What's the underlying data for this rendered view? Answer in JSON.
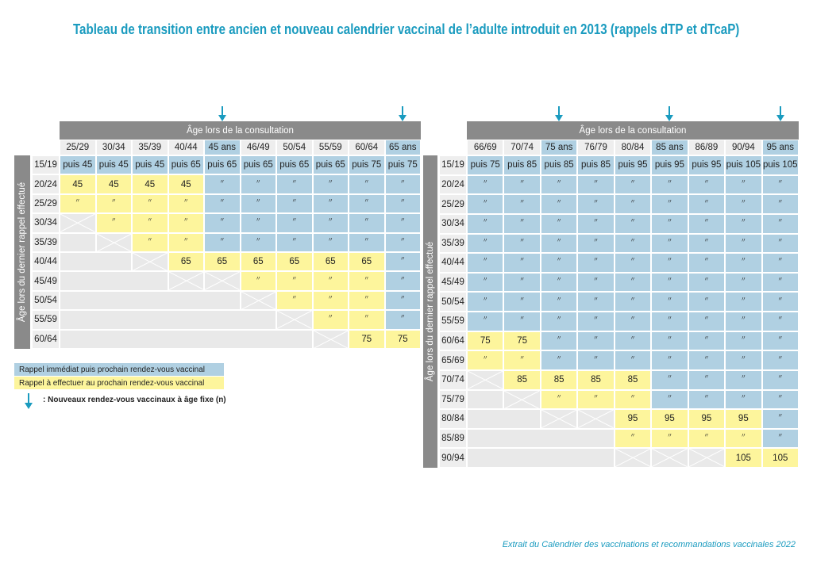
{
  "title": "Tableau de transition entre ancien et nouveau calendrier vaccinal de l’adulte introduit en 2013 (rappels dTP et dTcaP)",
  "colors": {
    "blue": "#b0d0e2",
    "yellow": "#fdf59c",
    "gray": "#e9e9e9",
    "bar": "#8a8a8a",
    "accent": "#1a9bbf"
  },
  "tables": [
    {
      "header": "Âge lors de la consultation",
      "side_label": "Âge lors du dernier rappel effectué",
      "columns": [
        {
          "label": "25/29",
          "fixed": false
        },
        {
          "label": "30/34",
          "fixed": false
        },
        {
          "label": "35/39",
          "fixed": false
        },
        {
          "label": "40/44",
          "fixed": false
        },
        {
          "label": "45 ans",
          "fixed": true
        },
        {
          "label": "46/49",
          "fixed": false
        },
        {
          "label": "50/54",
          "fixed": false
        },
        {
          "label": "55/59",
          "fixed": false
        },
        {
          "label": "60/64",
          "fixed": false
        },
        {
          "label": "65 ans",
          "fixed": true
        }
      ],
      "rows": [
        {
          "label": "15/19",
          "cells": [
            "b:puis 45",
            "b:puis 45",
            "b:puis 45",
            "b:puis 65",
            "b:puis 65",
            "b:puis 65",
            "b:puis 65",
            "b:puis 65",
            "b:puis 75",
            "b:puis 75"
          ]
        },
        {
          "label": "20/24",
          "cells": [
            "y:45",
            "y:45",
            "y:45",
            "y:45",
            "b:〃",
            "b:〃",
            "b:〃",
            "b:〃",
            "b:〃",
            "b:〃"
          ]
        },
        {
          "label": "25/29",
          "cells": [
            "y:〃",
            "y:〃",
            "y:〃",
            "y:〃",
            "b:〃",
            "b:〃",
            "b:〃",
            "b:〃",
            "b:〃",
            "b:〃"
          ]
        },
        {
          "label": "30/34",
          "cells": [
            "x",
            "y:〃",
            "y:〃",
            "y:〃",
            "b:〃",
            "b:〃",
            "b:〃",
            "b:〃",
            "b:〃",
            "b:〃"
          ]
        },
        {
          "label": "35/39",
          "cells": [
            "g",
            "x",
            "y:〃",
            "y:〃",
            "b:〃",
            "b:〃",
            "b:〃",
            "b:〃",
            "b:〃",
            "b:〃"
          ]
        },
        {
          "label": "40/44",
          "cells": [
            "g",
            "g",
            "x",
            "y:65",
            "y:65",
            "y:65",
            "y:65",
            "y:65",
            "y:65",
            "b:〃"
          ]
        },
        {
          "label": "45/49",
          "cells": [
            "g",
            "g",
            "g",
            "x",
            "x",
            "y:〃",
            "y:〃",
            "y:〃",
            "y:〃",
            "b:〃"
          ]
        },
        {
          "label": "50/54",
          "cells": [
            "g",
            "g",
            "g",
            "g",
            "g",
            "x",
            "y:〃",
            "y:〃",
            "y:〃",
            "b:〃"
          ]
        },
        {
          "label": "55/59",
          "cells": [
            "g",
            "g",
            "g",
            "g",
            "g",
            "g",
            "x",
            "y:〃",
            "y:〃",
            "b:〃"
          ]
        },
        {
          "label": "60/64",
          "cells": [
            "g",
            "g",
            "g",
            "g",
            "g",
            "g",
            "g",
            "x",
            "y:75",
            "y:75"
          ]
        }
      ]
    },
    {
      "header": "Âge lors de la consultation",
      "side_label": "Âge lors du dernier rappel effectué",
      "columns": [
        {
          "label": "66/69",
          "fixed": false
        },
        {
          "label": "70/74",
          "fixed": false
        },
        {
          "label": "75 ans",
          "fixed": true
        },
        {
          "label": "76/79",
          "fixed": false
        },
        {
          "label": "80/84",
          "fixed": false
        },
        {
          "label": "85 ans",
          "fixed": true
        },
        {
          "label": "86/89",
          "fixed": false
        },
        {
          "label": "90/94",
          "fixed": false
        },
        {
          "label": "95 ans",
          "fixed": true
        }
      ],
      "rows": [
        {
          "label": "15/19",
          "cells": [
            "b:puis 75",
            "b:puis 85",
            "b:puis 85",
            "b:puis 85",
            "b:puis 95",
            "b:puis 95",
            "b:puis 95",
            "b:puis 105",
            "b:puis 105"
          ]
        },
        {
          "label": "20/24",
          "cells": [
            "b:〃",
            "b:〃",
            "b:〃",
            "b:〃",
            "b:〃",
            "b:〃",
            "b:〃",
            "b:〃",
            "b:〃"
          ]
        },
        {
          "label": "25/29",
          "cells": [
            "b:〃",
            "b:〃",
            "b:〃",
            "b:〃",
            "b:〃",
            "b:〃",
            "b:〃",
            "b:〃",
            "b:〃"
          ]
        },
        {
          "label": "30/34",
          "cells": [
            "b:〃",
            "b:〃",
            "b:〃",
            "b:〃",
            "b:〃",
            "b:〃",
            "b:〃",
            "b:〃",
            "b:〃"
          ]
        },
        {
          "label": "35/39",
          "cells": [
            "b:〃",
            "b:〃",
            "b:〃",
            "b:〃",
            "b:〃",
            "b:〃",
            "b:〃",
            "b:〃",
            "b:〃"
          ]
        },
        {
          "label": "40/44",
          "cells": [
            "b:〃",
            "b:〃",
            "b:〃",
            "b:〃",
            "b:〃",
            "b:〃",
            "b:〃",
            "b:〃",
            "b:〃"
          ]
        },
        {
          "label": "45/49",
          "cells": [
            "b:〃",
            "b:〃",
            "b:〃",
            "b:〃",
            "b:〃",
            "b:〃",
            "b:〃",
            "b:〃",
            "b:〃"
          ]
        },
        {
          "label": "50/54",
          "cells": [
            "b:〃",
            "b:〃",
            "b:〃",
            "b:〃",
            "b:〃",
            "b:〃",
            "b:〃",
            "b:〃",
            "b:〃"
          ]
        },
        {
          "label": "55/59",
          "cells": [
            "b:〃",
            "b:〃",
            "b:〃",
            "b:〃",
            "b:〃",
            "b:〃",
            "b:〃",
            "b:〃",
            "b:〃"
          ]
        },
        {
          "label": "60/64",
          "cells": [
            "y:75",
            "y:75",
            "b:〃",
            "b:〃",
            "b:〃",
            "b:〃",
            "b:〃",
            "b:〃",
            "b:〃"
          ]
        },
        {
          "label": "65/69",
          "cells": [
            "y:〃",
            "y:〃",
            "b:〃",
            "b:〃",
            "b:〃",
            "b:〃",
            "b:〃",
            "b:〃",
            "b:〃"
          ]
        },
        {
          "label": "70/74",
          "cells": [
            "x",
            "y:85",
            "y:85",
            "y:85",
            "y:85",
            "b:〃",
            "b:〃",
            "b:〃",
            "b:〃"
          ]
        },
        {
          "label": "75/79",
          "cells": [
            "g",
            "x",
            "y:〃",
            "y:〃",
            "y:〃",
            "b:〃",
            "b:〃",
            "b:〃",
            "b:〃"
          ]
        },
        {
          "label": "80/84",
          "cells": [
            "g",
            "g",
            "x",
            "x",
            "y:95",
            "y:95",
            "y:95",
            "y:95",
            "b:〃"
          ]
        },
        {
          "label": "85/89",
          "cells": [
            "g",
            "g",
            "g",
            "g",
            "y:〃",
            "y:〃",
            "y:〃",
            "y:〃",
            "b:〃"
          ]
        },
        {
          "label": "90/94",
          "cells": [
            "g",
            "g",
            "g",
            "g",
            "x",
            "x",
            "x",
            "y:105",
            "y:105"
          ]
        }
      ]
    }
  ],
  "legend": {
    "blue": "Rappel immédiat puis prochain rendez-vous vaccinal",
    "yellow": "Rappel à effectuer au prochain rendez-vous vaccinal",
    "arrow": ": Nouveaux rendez-vous vaccinaux à âge fixe (n)",
    "arrow_icon": "arrow-down-icon"
  },
  "footer": "Extrait du Calendrier des vaccinations  et recommandations vaccinales 2022"
}
